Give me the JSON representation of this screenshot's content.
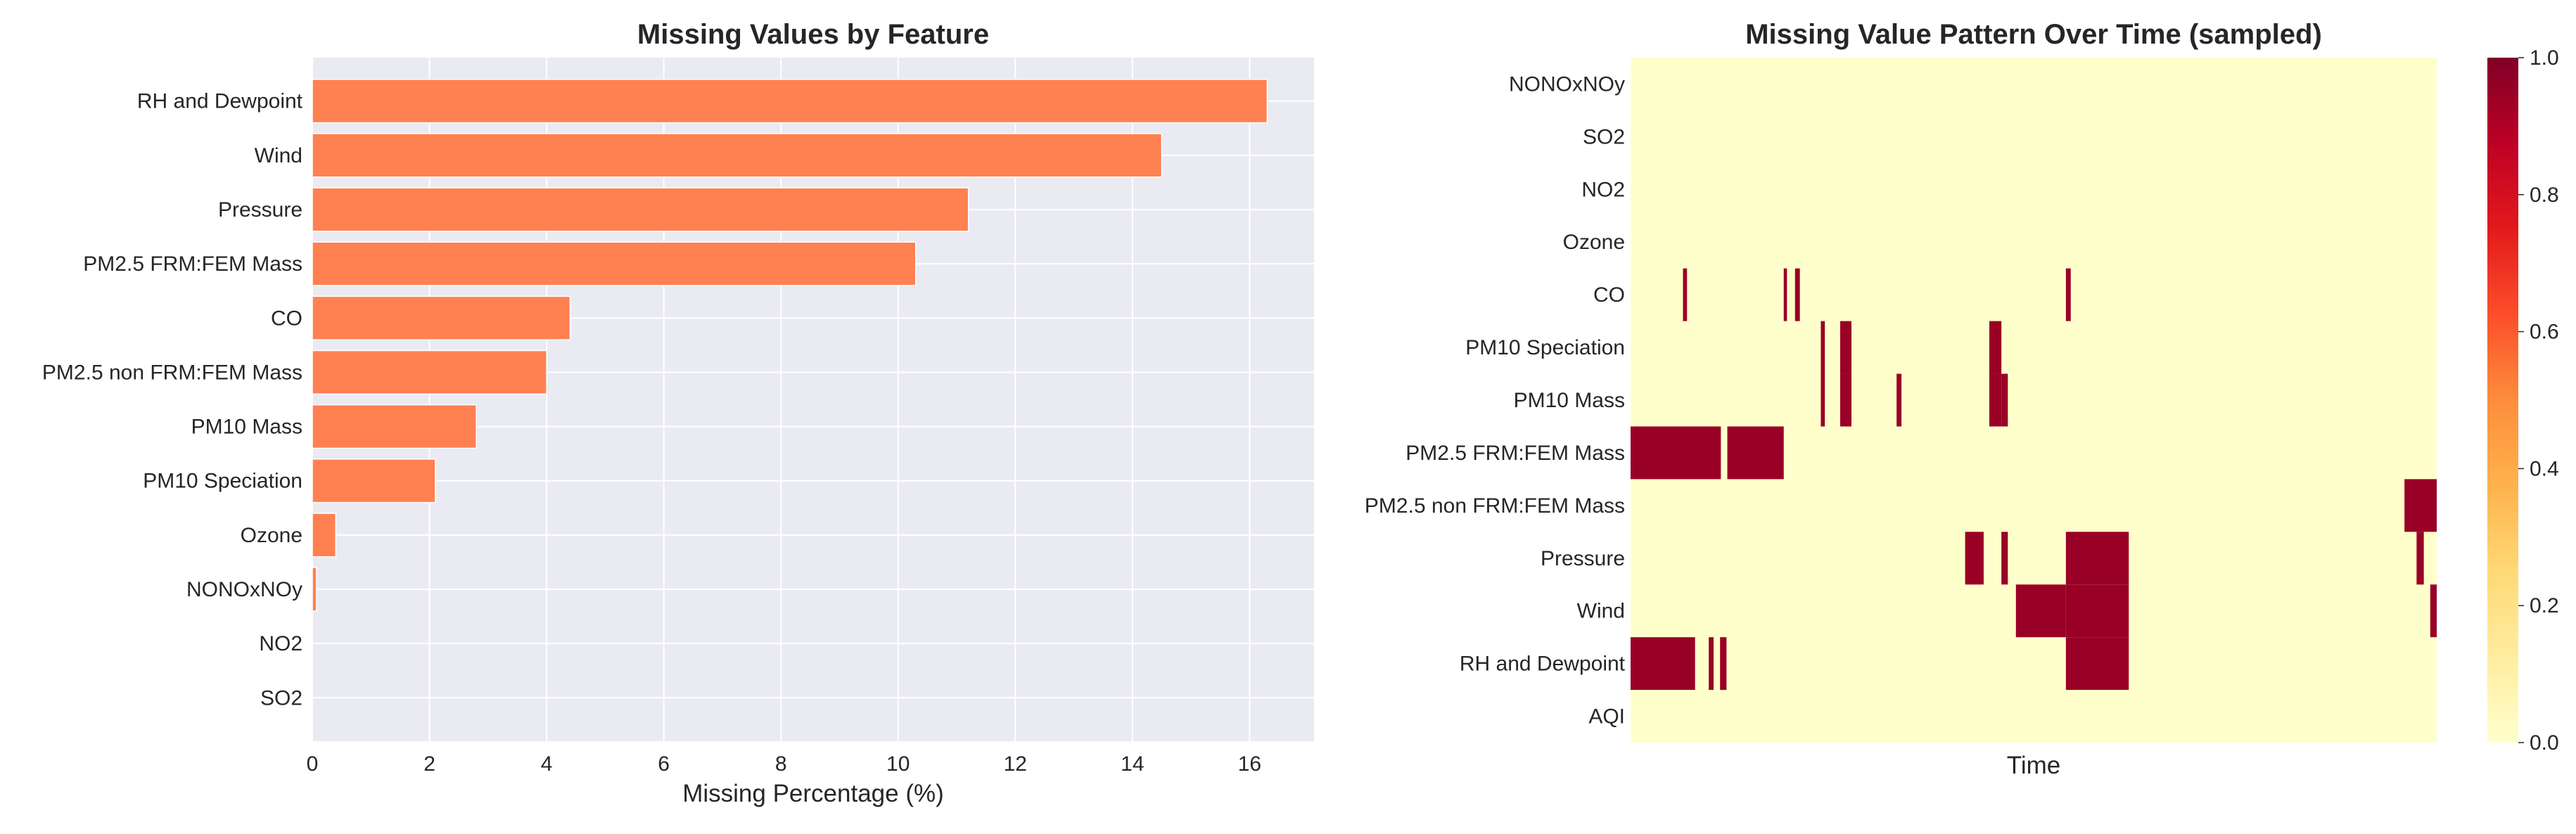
{
  "colors": {
    "bar": "#ff8050",
    "panel_bg": "#eaeaf2",
    "grid": "#ffffff",
    "heat_low": "#ffffcc",
    "heat_high": "#990026"
  },
  "chart_data": [
    {
      "type": "bar",
      "orientation": "horizontal",
      "title": "Missing Values by Feature",
      "xlabel": "Missing Percentage (%)",
      "ylabel": "",
      "categories": [
        "RH and Dewpoint",
        "Wind",
        "Pressure",
        "PM2.5 FRM:FEM Mass",
        "CO",
        "PM2.5 non FRM:FEM Mass",
        "PM10 Mass",
        "PM10 Speciation",
        "Ozone",
        "NONOxNOy",
        "NO2",
        "SO2"
      ],
      "values": [
        16.3,
        14.5,
        11.2,
        10.3,
        4.4,
        4.0,
        2.8,
        2.1,
        0.4,
        0.07,
        0.0,
        0.0
      ],
      "xlim": [
        0,
        17.1
      ],
      "xticks": [
        0,
        2,
        4,
        6,
        8,
        10,
        12,
        14,
        16
      ],
      "grid": true
    },
    {
      "type": "heatmap",
      "title": "Missing Value Pattern Over Time (sampled)",
      "xlabel": "Time",
      "ylabel": "",
      "rows": [
        "NONOxNOy",
        "SO2",
        "NO2",
        "Ozone",
        "CO",
        "PM10 Speciation",
        "PM10 Mass",
        "PM2.5 FRM:FEM Mass",
        "PM2.5 non FRM:FEM Mass",
        "Pressure",
        "Wind",
        "RH and Dewpoint",
        "AQI"
      ],
      "n_samples": 1000,
      "missing_segments": {
        "CO": [
          [
            65,
            70
          ],
          [
            190,
            194
          ],
          [
            204,
            210
          ],
          [
            540,
            546
          ]
        ],
        "PM10 Speciation": [
          [
            236,
            241
          ],
          [
            260,
            274
          ],
          [
            445,
            460
          ]
        ],
        "PM10 Mass": [
          [
            236,
            241
          ],
          [
            260,
            274
          ],
          [
            330,
            336
          ],
          [
            445,
            460
          ],
          [
            460,
            468
          ]
        ],
        "PM2.5 FRM:FEM Mass": [
          [
            0,
            112
          ],
          [
            120,
            190
          ]
        ],
        "PM2.5 non FRM:FEM Mass": [
          [
            960,
            1000
          ]
        ],
        "Pressure": [
          [
            415,
            438
          ],
          [
            460,
            468
          ],
          [
            540,
            618
          ],
          [
            975,
            984
          ]
        ],
        "Wind": [
          [
            478,
            540
          ],
          [
            540,
            618
          ],
          [
            992,
            1000
          ]
        ],
        "RH and Dewpoint": [
          [
            0,
            80
          ],
          [
            97,
            103
          ],
          [
            111,
            119
          ],
          [
            540,
            618
          ]
        ]
      },
      "colorbar": {
        "min": 0.0,
        "max": 1.0,
        "ticks": [
          "0.0",
          "0.2",
          "0.4",
          "0.6",
          "0.8",
          "1.0"
        ],
        "colormap": "YlOrRd"
      }
    }
  ]
}
